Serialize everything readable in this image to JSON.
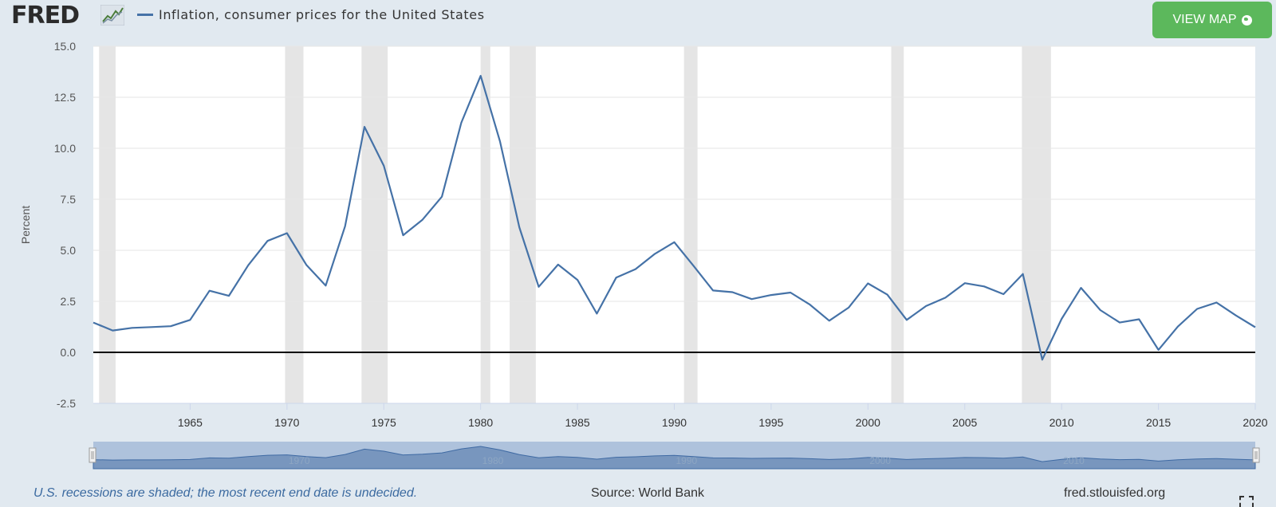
{
  "header": {
    "logo_text": "FRED",
    "logo_icon": "fred-graph-icon",
    "view_map_label": "VIEW MAP",
    "view_map_icon": "globe-icon"
  },
  "footer": {
    "recession_note": "U.S. recessions are shaded; the most recent end date is undecided.",
    "source": "Source: World Bank",
    "site": "fred.stlouisfed.org"
  },
  "colors": {
    "series": "#4572a7",
    "recession": "#e5e5e5",
    "background": "#e1e9f0",
    "button": "#5cb85c",
    "zero_line": "#000000"
  },
  "chart_data": {
    "type": "line",
    "title": "",
    "xlabel": "",
    "ylabel": "Percent",
    "xlim": [
      1960,
      2020
    ],
    "ylim": [
      -2.5,
      15.0
    ],
    "yticks": [
      "15.0",
      "12.5",
      "10.0",
      "7.5",
      "5.0",
      "2.5",
      "0.0",
      "-2.5"
    ],
    "xticks": [
      "1965",
      "1970",
      "1975",
      "1980",
      "1985",
      "1990",
      "1995",
      "2000",
      "2005",
      "2010",
      "2015",
      "2020"
    ],
    "navigator_ticks": [
      "1970",
      "1980",
      "1990",
      "2000",
      "2010"
    ],
    "grid": true,
    "legend": "top-left",
    "series": [
      {
        "name": "Inflation, consumer prices for the United States",
        "x": [
          1960,
          1961,
          1962,
          1963,
          1964,
          1965,
          1966,
          1967,
          1968,
          1969,
          1970,
          1971,
          1972,
          1973,
          1974,
          1975,
          1976,
          1977,
          1978,
          1979,
          1980,
          1981,
          1982,
          1983,
          1984,
          1985,
          1986,
          1987,
          1988,
          1989,
          1990,
          1991,
          1992,
          1993,
          1994,
          1995,
          1996,
          1997,
          1998,
          1999,
          2000,
          2001,
          2002,
          2003,
          2004,
          2005,
          2006,
          2007,
          2008,
          2009,
          2010,
          2011,
          2012,
          2013,
          2014,
          2015,
          2016,
          2017,
          2018,
          2019,
          2020
        ],
        "values": [
          1.46,
          1.07,
          1.2,
          1.24,
          1.28,
          1.59,
          3.02,
          2.77,
          4.27,
          5.46,
          5.84,
          4.29,
          3.27,
          6.18,
          11.05,
          9.14,
          5.74,
          6.5,
          7.63,
          11.25,
          13.55,
          10.33,
          6.13,
          3.21,
          4.3,
          3.55,
          1.9,
          3.66,
          4.08,
          4.83,
          5.4,
          4.23,
          3.03,
          2.95,
          2.61,
          2.81,
          2.93,
          2.34,
          1.55,
          2.19,
          3.38,
          2.83,
          1.59,
          2.27,
          2.68,
          3.39,
          3.23,
          2.85,
          3.84,
          -0.36,
          1.64,
          3.16,
          2.07,
          1.46,
          1.62,
          0.12,
          1.26,
          2.13,
          2.44,
          1.81,
          1.23
        ]
      }
    ],
    "recessions": [
      [
        1960.3,
        1961.15
      ],
      [
        1969.9,
        1970.85
      ],
      [
        1973.85,
        1975.2
      ],
      [
        1980.0,
        1980.5
      ],
      [
        1981.5,
        1982.85
      ],
      [
        1990.5,
        1991.2
      ],
      [
        2001.2,
        2001.85
      ],
      [
        2007.95,
        2009.45
      ]
    ]
  }
}
